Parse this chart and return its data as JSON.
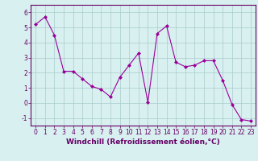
{
  "x": [
    0,
    1,
    2,
    3,
    4,
    5,
    6,
    7,
    8,
    9,
    10,
    11,
    12,
    13,
    14,
    15,
    16,
    17,
    18,
    19,
    20,
    21,
    22,
    23
  ],
  "y": [
    5.2,
    5.7,
    4.5,
    2.1,
    2.1,
    1.6,
    1.1,
    0.9,
    0.4,
    1.7,
    2.5,
    3.3,
    0.05,
    4.6,
    5.1,
    2.7,
    2.4,
    2.5,
    2.8,
    2.8,
    1.5,
    -0.1,
    -1.1,
    -1.2
  ],
  "line_color": "#990099",
  "marker": "D",
  "marker_size": 2,
  "bg_color": "#d8f0f0",
  "grid_color": "#aacccc",
  "xlabel": "Windchill (Refroidissement éolien,°C)",
  "xlim": [
    -0.5,
    23.5
  ],
  "ylim": [
    -1.5,
    6.5
  ],
  "yticks": [
    -1,
    0,
    1,
    2,
    3,
    4,
    5,
    6
  ],
  "xticks": [
    0,
    1,
    2,
    3,
    4,
    5,
    6,
    7,
    8,
    9,
    10,
    11,
    12,
    13,
    14,
    15,
    16,
    17,
    18,
    19,
    20,
    21,
    22,
    23
  ],
  "tick_fontsize": 5.5,
  "xlabel_fontsize": 6.5,
  "axis_color": "#660066"
}
